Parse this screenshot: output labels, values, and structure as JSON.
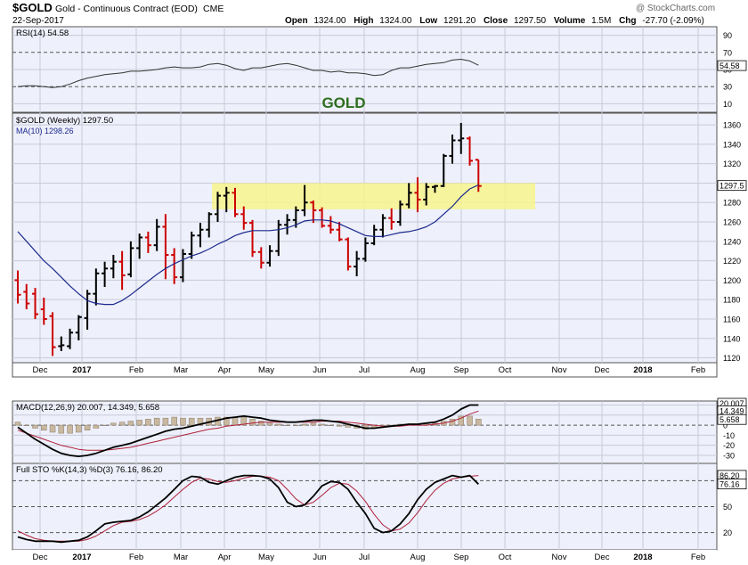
{
  "header": {
    "symbol": "$GOLD",
    "name": "Gold - Continuous Contract (EOD)",
    "exchange": "CME",
    "date": "22-Sep-2017",
    "watermark": "@ StockCharts.com",
    "open_label": "Open",
    "open": "1324.00",
    "high_label": "High",
    "high": "1324.00",
    "low_label": "Low",
    "low": "1291.20",
    "close_label": "Close",
    "close": "1297.50",
    "volume_label": "Volume",
    "volume": "1.5M",
    "chg_label": "Chg",
    "chg": "-27.70 (-2.09%)"
  },
  "colors": {
    "panel_bg": "#eef0fb",
    "grid": "#c8cbd8",
    "up_bar": "#000000",
    "down_bar": "#cc0000",
    "ma_line": "#1c2a8c",
    "highlight": "#f7f58c",
    "gold_label": "#2e6e1e",
    "signal_line": "#b0203a",
    "hist_fill": "#c9b8a0"
  },
  "chart_data": [
    {
      "type": "line",
      "panel": "rsi",
      "legend": "RSI(14) 54.58",
      "last_value_label": "54.58",
      "ylim": [
        0,
        100
      ],
      "ticks": [
        "90",
        "70",
        "50",
        "30",
        "10"
      ],
      "grid": true,
      "series": [
        {
          "name": "RSI(14)",
          "values": [
            30,
            31,
            31,
            30,
            29,
            30,
            33,
            37,
            40,
            42,
            44,
            45,
            46,
            48,
            48,
            49,
            50,
            52,
            53,
            52,
            52,
            53,
            56,
            57,
            55,
            51,
            49,
            52,
            52,
            54,
            56,
            57,
            55,
            52,
            49,
            49,
            47,
            48,
            46,
            46,
            45,
            43,
            44,
            49,
            52,
            52,
            54,
            56,
            57,
            58,
            61,
            62,
            60,
            55
          ]
        }
      ]
    },
    {
      "type": "ohlc",
      "panel": "price",
      "overlay_label": "GOLD",
      "legend": [
        "$GOLD (Weekly) 1297.50",
        "MA(10) 1298.26"
      ],
      "last_value_label": "1297.5",
      "ylim": [
        1115,
        1372
      ],
      "ticks": [
        "1360",
        "1340",
        "1320",
        "1300",
        "1280",
        "1260",
        "1240",
        "1220",
        "1200",
        "1180",
        "1160",
        "1140",
        "1120"
      ],
      "x_labels": [
        "Dec",
        "2017",
        "Feb",
        "Mar",
        "Apr",
        "May",
        "Jun",
        "Jul",
        "Aug",
        "Sep",
        "Oct",
        "Nov",
        "Dec",
        "2018",
        "Feb"
      ],
      "highlight_range": [
        1273,
        1300
      ],
      "grid": true,
      "bars": [
        {
          "o": 1200,
          "h": 1210,
          "l": 1176,
          "c": 1185
        },
        {
          "o": 1188,
          "h": 1196,
          "l": 1170,
          "c": 1176
        },
        {
          "o": 1186,
          "h": 1192,
          "l": 1160,
          "c": 1165
        },
        {
          "o": 1170,
          "h": 1182,
          "l": 1154,
          "c": 1160
        },
        {
          "o": 1163,
          "h": 1167,
          "l": 1122,
          "c": 1131
        },
        {
          "o": 1132,
          "h": 1142,
          "l": 1127,
          "c": 1133
        },
        {
          "o": 1132,
          "h": 1150,
          "l": 1129,
          "c": 1146
        },
        {
          "o": 1146,
          "h": 1164,
          "l": 1138,
          "c": 1162
        },
        {
          "o": 1161,
          "h": 1190,
          "l": 1149,
          "c": 1186
        },
        {
          "o": 1186,
          "h": 1212,
          "l": 1174,
          "c": 1207
        },
        {
          "o": 1207,
          "h": 1219,
          "l": 1193,
          "c": 1212
        },
        {
          "o": 1212,
          "h": 1226,
          "l": 1202,
          "c": 1219
        },
        {
          "o": 1219,
          "h": 1230,
          "l": 1190,
          "c": 1205
        },
        {
          "o": 1206,
          "h": 1240,
          "l": 1203,
          "c": 1233
        },
        {
          "o": 1233,
          "h": 1248,
          "l": 1222,
          "c": 1244
        },
        {
          "o": 1244,
          "h": 1250,
          "l": 1228,
          "c": 1236
        },
        {
          "o": 1236,
          "h": 1263,
          "l": 1230,
          "c": 1255
        },
        {
          "o": 1255,
          "h": 1268,
          "l": 1201,
          "c": 1226
        },
        {
          "o": 1226,
          "h": 1233,
          "l": 1196,
          "c": 1203
        },
        {
          "o": 1203,
          "h": 1232,
          "l": 1198,
          "c": 1227
        },
        {
          "o": 1227,
          "h": 1250,
          "l": 1222,
          "c": 1246
        },
        {
          "o": 1246,
          "h": 1259,
          "l": 1234,
          "c": 1252
        },
        {
          "o": 1252,
          "h": 1270,
          "l": 1244,
          "c": 1268
        },
        {
          "o": 1268,
          "h": 1291,
          "l": 1260,
          "c": 1287
        },
        {
          "o": 1287,
          "h": 1296,
          "l": 1270,
          "c": 1290
        },
        {
          "o": 1290,
          "h": 1295,
          "l": 1265,
          "c": 1268
        },
        {
          "o": 1268,
          "h": 1276,
          "l": 1252,
          "c": 1259
        },
        {
          "o": 1259,
          "h": 1262,
          "l": 1224,
          "c": 1229
        },
        {
          "o": 1229,
          "h": 1234,
          "l": 1212,
          "c": 1218
        },
        {
          "o": 1218,
          "h": 1236,
          "l": 1214,
          "c": 1230
        },
        {
          "o": 1230,
          "h": 1262,
          "l": 1225,
          "c": 1257
        },
        {
          "o": 1257,
          "h": 1268,
          "l": 1247,
          "c": 1262
        },
        {
          "o": 1262,
          "h": 1276,
          "l": 1254,
          "c": 1272
        },
        {
          "o": 1272,
          "h": 1298,
          "l": 1266,
          "c": 1280
        },
        {
          "o": 1280,
          "h": 1282,
          "l": 1259,
          "c": 1272
        },
        {
          "o": 1272,
          "h": 1275,
          "l": 1254,
          "c": 1256
        },
        {
          "o": 1256,
          "h": 1266,
          "l": 1248,
          "c": 1252
        },
        {
          "o": 1252,
          "h": 1260,
          "l": 1240,
          "c": 1242
        },
        {
          "o": 1242,
          "h": 1244,
          "l": 1210,
          "c": 1214
        },
        {
          "o": 1214,
          "h": 1230,
          "l": 1204,
          "c": 1222
        },
        {
          "o": 1222,
          "h": 1244,
          "l": 1219,
          "c": 1238
        },
        {
          "o": 1238,
          "h": 1257,
          "l": 1236,
          "c": 1252
        },
        {
          "o": 1252,
          "h": 1268,
          "l": 1244,
          "c": 1264
        },
        {
          "o": 1264,
          "h": 1274,
          "l": 1252,
          "c": 1260
        },
        {
          "o": 1260,
          "h": 1282,
          "l": 1256,
          "c": 1278
        },
        {
          "o": 1278,
          "h": 1300,
          "l": 1274,
          "c": 1290
        },
        {
          "o": 1290,
          "h": 1306,
          "l": 1270,
          "c": 1283
        },
        {
          "o": 1283,
          "h": 1300,
          "l": 1277,
          "c": 1296
        },
        {
          "o": 1296,
          "h": 1298,
          "l": 1290,
          "c": 1297
        },
        {
          "o": 1297,
          "h": 1330,
          "l": 1296,
          "c": 1328
        },
        {
          "o": 1328,
          "h": 1350,
          "l": 1320,
          "c": 1344
        },
        {
          "o": 1344,
          "h": 1362,
          "l": 1330,
          "c": 1346
        },
        {
          "o": 1346,
          "h": 1348,
          "l": 1318,
          "c": 1323
        },
        {
          "o": 1324,
          "h": 1324,
          "l": 1291,
          "c": 1297
        }
      ],
      "series": [
        {
          "name": "MA(10)",
          "values": [
            1250,
            1240,
            1230,
            1220,
            1212,
            1203,
            1194,
            1186,
            1179,
            1176,
            1175,
            1175,
            1179,
            1185,
            1192,
            1199,
            1206,
            1212,
            1217,
            1221,
            1225,
            1228,
            1232,
            1237,
            1241,
            1246,
            1249,
            1251,
            1251,
            1251,
            1252,
            1254,
            1257,
            1261,
            1262,
            1262,
            1261,
            1258,
            1254,
            1250,
            1246,
            1245,
            1245,
            1247,
            1249,
            1250,
            1252,
            1255,
            1260,
            1268,
            1276,
            1286,
            1294,
            1298
          ]
        }
      ]
    },
    {
      "type": "line",
      "panel": "macd",
      "legend": "MACD(12,26,9) 20.007, 14.349, 5.658",
      "last_value_labels": [
        "20.007",
        "14.349",
        "5.658"
      ],
      "ylim": [
        -38,
        24
      ],
      "ticks": [
        "20",
        "10",
        "0",
        "-10",
        "-20",
        "-30"
      ],
      "grid": true,
      "series": [
        {
          "name": "MACD",
          "values": [
            -2,
            -8,
            -14,
            -19,
            -24,
            -28,
            -30,
            -31,
            -30,
            -28,
            -25,
            -22,
            -20,
            -18,
            -15,
            -12,
            -9,
            -6,
            -4,
            -3,
            -1,
            1,
            3,
            5,
            7,
            8,
            9,
            8,
            7,
            5,
            4,
            3,
            3,
            4,
            5,
            5,
            4,
            3,
            1,
            -1,
            -3,
            -3,
            -2,
            -1,
            0,
            1,
            1,
            2,
            3,
            6,
            10,
            16,
            20,
            20
          ]
        },
        {
          "name": "Signal",
          "values": [
            -5,
            -8,
            -11,
            -14,
            -17,
            -20,
            -22,
            -24,
            -25,
            -25,
            -25,
            -24,
            -23,
            -22,
            -20,
            -18,
            -16,
            -14,
            -12,
            -10,
            -8,
            -6,
            -4,
            -3,
            -1,
            0,
            1,
            2,
            3,
            3,
            3,
            3,
            3,
            3,
            3,
            4,
            4,
            4,
            3,
            2,
            1,
            0,
            -1,
            -1,
            -1,
            0,
            0,
            0,
            1,
            2,
            4,
            7,
            11,
            14
          ]
        },
        {
          "name": "Histogram",
          "values": [
            3,
            0,
            -3,
            -5,
            -7,
            -8,
            -8,
            -7,
            -5,
            -3,
            0,
            2,
            3,
            4,
            5,
            6,
            7,
            7,
            8,
            7,
            7,
            7,
            7,
            8,
            8,
            8,
            8,
            6,
            4,
            2,
            1,
            0,
            0,
            1,
            2,
            1,
            0,
            -1,
            -2,
            -3,
            -4,
            -3,
            -1,
            0,
            1,
            1,
            1,
            2,
            2,
            4,
            6,
            9,
            9,
            6
          ]
        }
      ]
    },
    {
      "type": "line",
      "panel": "sto",
      "legend": "Full STO %K(14,3) %D(3) 76.16, 86.20",
      "last_value_labels": [
        "86.20",
        "76.16"
      ],
      "ylim": [
        0,
        100
      ],
      "ticks": [
        "80",
        "50",
        "20"
      ],
      "x_labels": [
        "Dec",
        "2017",
        "Feb",
        "Mar",
        "Apr",
        "May",
        "Jun",
        "Jul",
        "Aug",
        "Sep",
        "Oct",
        "Nov",
        "Dec",
        "2018",
        "Feb"
      ],
      "grid": true,
      "series": [
        {
          "name": "%K",
          "values": [
            15,
            12,
            10,
            10,
            10,
            9,
            10,
            11,
            15,
            22,
            30,
            32,
            33,
            34,
            38,
            44,
            52,
            60,
            70,
            80,
            85,
            84,
            78,
            76,
            80,
            84,
            86,
            86,
            85,
            82,
            72,
            55,
            50,
            52,
            62,
            74,
            79,
            78,
            70,
            55,
            42,
            25,
            20,
            22,
            30,
            42,
            58,
            70,
            78,
            82,
            86,
            84,
            86,
            76
          ]
        },
        {
          "name": "%D",
          "values": [
            22,
            17,
            13,
            11,
            10,
            10,
            10,
            10,
            12,
            16,
            22,
            28,
            32,
            33,
            35,
            39,
            45,
            52,
            61,
            70,
            78,
            83,
            82,
            79,
            78,
            80,
            83,
            85,
            85,
            84,
            80,
            70,
            59,
            52,
            55,
            63,
            72,
            77,
            76,
            68,
            56,
            41,
            29,
            22,
            24,
            31,
            43,
            57,
            69,
            77,
            82,
            84,
            85,
            86
          ]
        }
      ]
    }
  ]
}
